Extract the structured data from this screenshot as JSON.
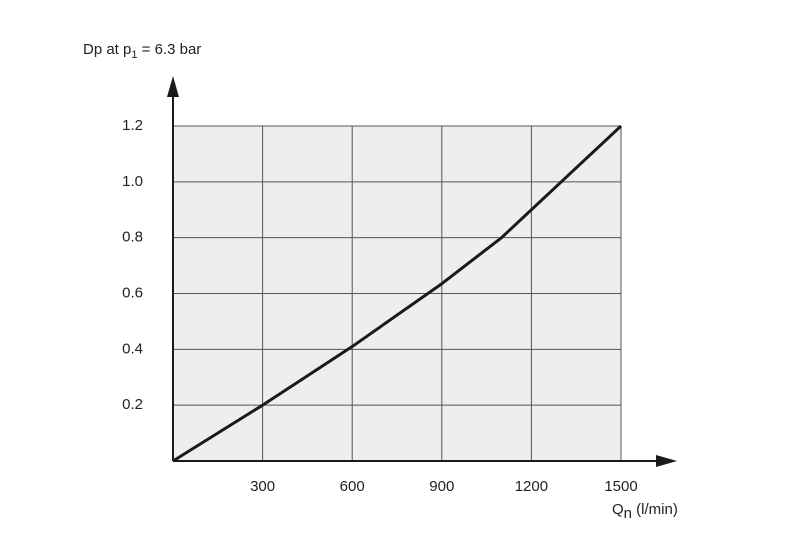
{
  "chart_data": {
    "type": "line",
    "y_label": {
      "text": "Dp at p",
      "subscript": "1",
      "suffix": " = 6.3 bar"
    },
    "x_label": {
      "text": "Q",
      "subscript": "n",
      "suffix": " (l/min)"
    },
    "x": [
      0,
      300,
      600,
      900,
      1100,
      1200,
      1300,
      1500
    ],
    "series": [
      {
        "color": "#1a1a1a",
        "values": [
          0,
          0.2,
          0.41,
          0.635,
          0.8,
          0.9,
          1.0,
          1.2
        ]
      }
    ],
    "xlim": [
      0,
      1500
    ],
    "xticks": [
      300,
      600,
      900,
      1200,
      1500
    ],
    "ylim": [
      0,
      1.2
    ],
    "yticks": [
      0.2,
      0.4,
      0.6,
      0.8,
      {
        "value": 1,
        "label": "1.0"
      },
      1.2
    ],
    "grid": true
  }
}
